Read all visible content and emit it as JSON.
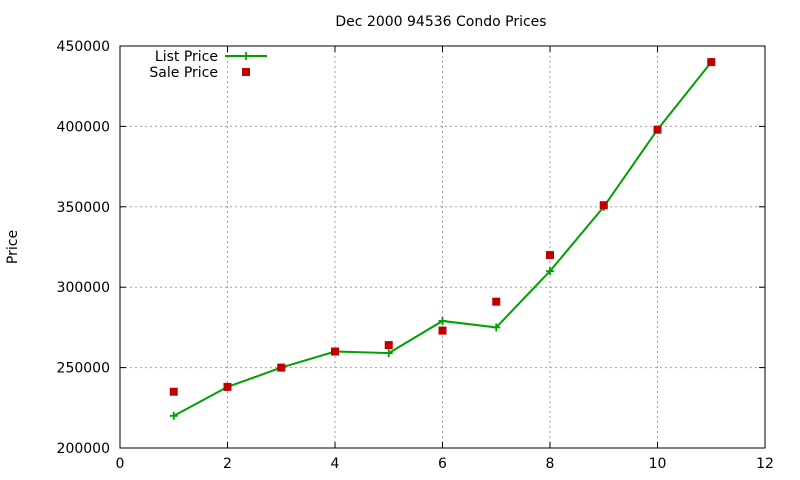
{
  "chart_data": {
    "type": "line",
    "title": "Dec 2000 94536 Condo Prices",
    "xlabel": "",
    "ylabel": "Price",
    "xlim": [
      0,
      12
    ],
    "ylim": [
      200000,
      450000
    ],
    "x_ticks": [
      0,
      2,
      4,
      6,
      8,
      10,
      12
    ],
    "y_ticks": [
      200000,
      250000,
      300000,
      350000,
      400000,
      450000
    ],
    "grid": true,
    "legend_position": "top-left",
    "series": [
      {
        "name": "List Price",
        "style": "line+cross",
        "color": "#00a000",
        "x": [
          1,
          2,
          3,
          4,
          5,
          6,
          7,
          8,
          9,
          10,
          11
        ],
        "y": [
          220000,
          238000,
          250000,
          260000,
          259000,
          279000,
          275000,
          310000,
          350000,
          398000,
          440000
        ]
      },
      {
        "name": "Sale Price",
        "style": "square",
        "color": "#c00000",
        "x": [
          1,
          2,
          3,
          4,
          5,
          6,
          7,
          8,
          9,
          10,
          11
        ],
        "y": [
          235000,
          238000,
          250000,
          260000,
          264000,
          273000,
          291000,
          320000,
          351000,
          398000,
          440000
        ]
      }
    ]
  }
}
